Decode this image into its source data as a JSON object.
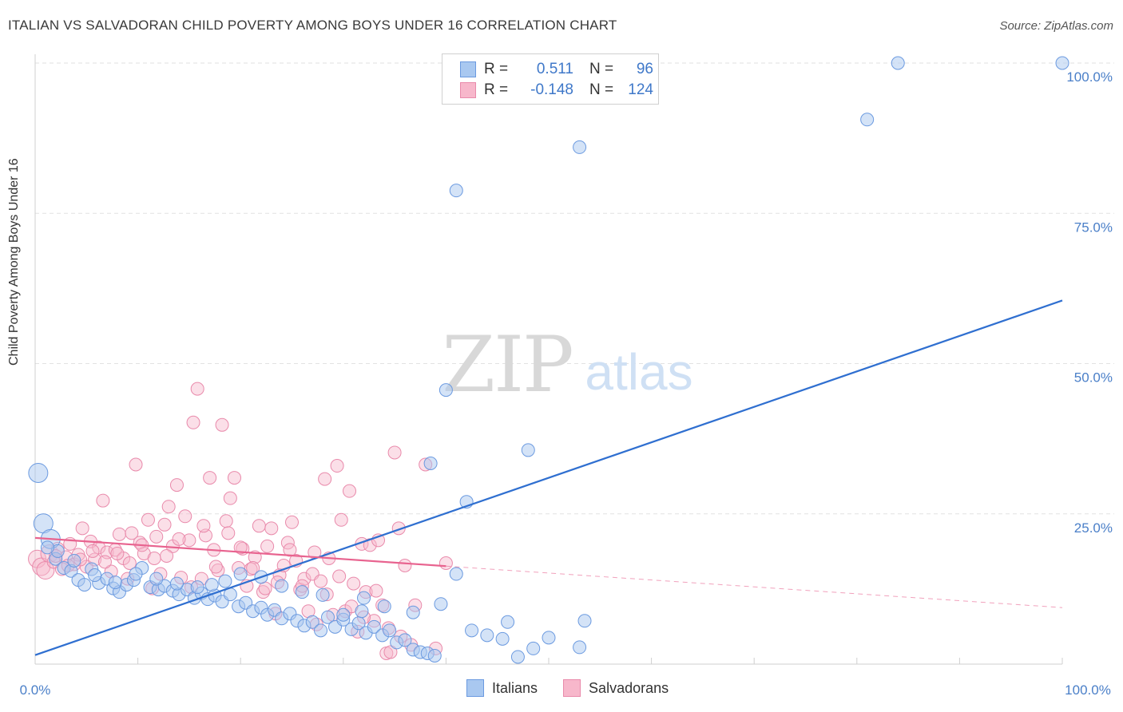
{
  "title": "ITALIAN VS SALVADORAN CHILD POVERTY AMONG BOYS UNDER 16 CORRELATION CHART",
  "source": "Source: ZipAtlas.com",
  "watermark": {
    "zip": "ZIP",
    "atlas": "atlas"
  },
  "legend": {
    "rows": [
      {
        "r_label": "R =",
        "r_value": "0.511",
        "n_label": "N =",
        "n_value": "96"
      },
      {
        "r_label": "R =",
        "r_value": "-0.148",
        "n_label": "N =",
        "n_value": "124"
      }
    ]
  },
  "bottom_legend": {
    "italians": "Italians",
    "salvadorans": "Salvadorans"
  },
  "colors": {
    "italians_fill": "#a9c8f0",
    "italians_stroke": "#6b9ae0",
    "italians_line": "#2f6fd0",
    "salvadorans_fill": "#f7b7cb",
    "salvadorans_stroke": "#e98aab",
    "salvadorans_line": "#e8638f"
  },
  "chart_data": {
    "type": "scatter",
    "title": "ITALIAN VS SALVADORAN CHILD POVERTY AMONG BOYS UNDER 16 CORRELATION CHART",
    "xlabel": "",
    "ylabel": "Child Poverty Among Boys Under 16",
    "xlim": [
      0,
      100
    ],
    "ylim": [
      0,
      100
    ],
    "x_tick_labels": [
      "0.0%",
      "100.0%"
    ],
    "y_ticks": [
      {
        "value": 25,
        "label": "25.0%"
      },
      {
        "value": 50,
        "label": "50.0%"
      },
      {
        "value": 75,
        "label": "75.0%"
      },
      {
        "value": 100,
        "label": "100.0%"
      }
    ],
    "grid": true,
    "series": [
      {
        "name": "Italians",
        "r": 0.511,
        "n": 96,
        "trend": {
          "x": [
            0,
            100
          ],
          "y": [
            1.5,
            60.5
          ]
        },
        "points": [
          [
            0.3,
            31.8
          ],
          [
            0.8,
            23.4
          ],
          [
            1.5,
            20.8
          ],
          [
            2.0,
            17.5
          ],
          [
            2.8,
            16.0
          ],
          [
            3.5,
            15.5
          ],
          [
            4.2,
            14.0
          ],
          [
            4.8,
            13.2
          ],
          [
            5.5,
            15.8
          ],
          [
            6.2,
            13.5
          ],
          [
            7.0,
            14.2
          ],
          [
            7.6,
            12.6
          ],
          [
            8.2,
            12.0
          ],
          [
            8.9,
            13.2
          ],
          [
            9.6,
            14.0
          ],
          [
            10.4,
            16.0
          ],
          [
            11.2,
            12.8
          ],
          [
            12.0,
            12.4
          ],
          [
            12.6,
            13.0
          ],
          [
            13.4,
            12.2
          ],
          [
            14.0,
            11.6
          ],
          [
            14.8,
            12.4
          ],
          [
            15.5,
            11.0
          ],
          [
            16.2,
            11.8
          ],
          [
            16.8,
            10.8
          ],
          [
            17.5,
            11.4
          ],
          [
            18.2,
            10.4
          ],
          [
            19.0,
            11.6
          ],
          [
            19.8,
            9.6
          ],
          [
            20.5,
            10.2
          ],
          [
            21.2,
            8.8
          ],
          [
            22.0,
            9.4
          ],
          [
            22.6,
            8.2
          ],
          [
            23.3,
            9.0
          ],
          [
            24.0,
            7.6
          ],
          [
            24.8,
            8.4
          ],
          [
            25.5,
            7.2
          ],
          [
            26.2,
            6.4
          ],
          [
            27.0,
            7.0
          ],
          [
            27.8,
            5.6
          ],
          [
            28.5,
            7.8
          ],
          [
            29.2,
            6.2
          ],
          [
            30.0,
            7.4
          ],
          [
            30.8,
            5.8
          ],
          [
            31.5,
            6.8
          ],
          [
            32.2,
            5.2
          ],
          [
            33.0,
            6.2
          ],
          [
            33.8,
            4.8
          ],
          [
            34.5,
            5.6
          ],
          [
            35.2,
            3.6
          ],
          [
            36.0,
            4.0
          ],
          [
            36.8,
            2.4
          ],
          [
            37.5,
            2.0
          ],
          [
            38.2,
            1.8
          ],
          [
            38.9,
            1.4
          ],
          [
            41.0,
            15.0
          ],
          [
            42.0,
            27.0
          ],
          [
            48.0,
            35.6
          ],
          [
            40.0,
            45.6
          ],
          [
            41.0,
            78.8
          ],
          [
            53.0,
            86.0
          ],
          [
            81.0,
            90.6
          ],
          [
            84.0,
            100.0
          ],
          [
            100.0,
            100.0
          ],
          [
            38.5,
            33.4
          ],
          [
            30.0,
            8.2
          ],
          [
            31.8,
            8.8
          ],
          [
            34.0,
            9.6
          ],
          [
            36.8,
            8.6
          ],
          [
            39.5,
            10.0
          ],
          [
            32.0,
            11.0
          ],
          [
            28.0,
            11.5
          ],
          [
            26.0,
            12.0
          ],
          [
            24.0,
            13.0
          ],
          [
            22.0,
            14.5
          ],
          [
            20.0,
            15.0
          ],
          [
            18.5,
            13.8
          ],
          [
            17.2,
            13.2
          ],
          [
            15.8,
            12.8
          ],
          [
            13.8,
            13.4
          ],
          [
            11.8,
            14.2
          ],
          [
            9.8,
            15.0
          ],
          [
            7.8,
            13.6
          ],
          [
            5.8,
            14.8
          ],
          [
            3.8,
            17.2
          ],
          [
            2.2,
            18.8
          ],
          [
            1.2,
            19.4
          ],
          [
            44.0,
            4.8
          ],
          [
            45.5,
            4.2
          ],
          [
            47.0,
            1.2
          ],
          [
            50.0,
            4.4
          ],
          [
            53.5,
            7.2
          ],
          [
            53.0,
            2.8
          ],
          [
            42.5,
            5.6
          ],
          [
            46.0,
            7.0
          ],
          [
            48.5,
            2.6
          ]
        ]
      },
      {
        "name": "Salvadorans",
        "r": -0.148,
        "n": 124,
        "trend": {
          "x": [
            0,
            40
          ],
          "y": [
            21.0,
            16.3
          ]
        },
        "trend_dashed": {
          "x": [
            40,
            100
          ],
          "y": [
            16.3,
            9.4
          ]
        },
        "points": [
          [
            0.2,
            17.5
          ],
          [
            0.6,
            16.2
          ],
          [
            1.0,
            15.6
          ],
          [
            1.4,
            18.4
          ],
          [
            1.8,
            17.0
          ],
          [
            2.2,
            19.2
          ],
          [
            2.6,
            15.8
          ],
          [
            3.0,
            17.8
          ],
          [
            3.4,
            20.0
          ],
          [
            3.8,
            16.6
          ],
          [
            4.2,
            18.2
          ],
          [
            4.6,
            22.6
          ],
          [
            5.0,
            16.2
          ],
          [
            5.4,
            20.4
          ],
          [
            5.8,
            17.4
          ],
          [
            6.2,
            19.4
          ],
          [
            6.6,
            27.2
          ],
          [
            7.0,
            18.6
          ],
          [
            7.4,
            15.4
          ],
          [
            7.8,
            19.0
          ],
          [
            8.2,
            21.6
          ],
          [
            8.6,
            17.6
          ],
          [
            9.0,
            14.2
          ],
          [
            9.4,
            21.8
          ],
          [
            9.8,
            33.2
          ],
          [
            10.2,
            20.2
          ],
          [
            10.6,
            18.4
          ],
          [
            11.0,
            24.0
          ],
          [
            11.4,
            12.6
          ],
          [
            11.8,
            21.2
          ],
          [
            12.2,
            15.0
          ],
          [
            12.6,
            23.2
          ],
          [
            13.0,
            26.2
          ],
          [
            13.4,
            19.6
          ],
          [
            13.8,
            29.8
          ],
          [
            14.2,
            14.4
          ],
          [
            14.6,
            24.6
          ],
          [
            15.0,
            20.6
          ],
          [
            15.4,
            40.2
          ],
          [
            15.8,
            45.8
          ],
          [
            16.2,
            14.2
          ],
          [
            16.6,
            21.4
          ],
          [
            17.0,
            31.0
          ],
          [
            17.4,
            19.0
          ],
          [
            17.8,
            15.6
          ],
          [
            18.2,
            39.8
          ],
          [
            18.6,
            23.8
          ],
          [
            19.0,
            27.6
          ],
          [
            19.4,
            31.0
          ],
          [
            19.8,
            16.0
          ],
          [
            20.2,
            19.2
          ],
          [
            20.6,
            13.0
          ],
          [
            21.0,
            15.8
          ],
          [
            21.4,
            17.8
          ],
          [
            21.8,
            23.0
          ],
          [
            22.2,
            12.0
          ],
          [
            22.6,
            19.6
          ],
          [
            23.0,
            22.6
          ],
          [
            23.4,
            8.4
          ],
          [
            23.8,
            14.8
          ],
          [
            24.2,
            16.4
          ],
          [
            24.6,
            20.2
          ],
          [
            25.0,
            23.6
          ],
          [
            25.4,
            17.2
          ],
          [
            25.8,
            12.4
          ],
          [
            26.2,
            14.2
          ],
          [
            26.6,
            8.8
          ],
          [
            27.0,
            15.0
          ],
          [
            27.4,
            6.6
          ],
          [
            27.8,
            13.8
          ],
          [
            28.2,
            30.8
          ],
          [
            28.6,
            17.6
          ],
          [
            29.0,
            8.2
          ],
          [
            29.4,
            33.0
          ],
          [
            29.8,
            24.0
          ],
          [
            30.2,
            8.8
          ],
          [
            30.6,
            28.8
          ],
          [
            31.0,
            13.4
          ],
          [
            31.4,
            5.4
          ],
          [
            31.8,
            20.0
          ],
          [
            32.2,
            12.0
          ],
          [
            32.6,
            19.8
          ],
          [
            33.0,
            7.2
          ],
          [
            33.4,
            20.6
          ],
          [
            33.8,
            9.8
          ],
          [
            34.2,
            1.8
          ],
          [
            34.6,
            2.0
          ],
          [
            35.0,
            35.2
          ],
          [
            35.4,
            22.6
          ],
          [
            36.0,
            16.4
          ],
          [
            37.0,
            9.8
          ],
          [
            38.0,
            33.2
          ],
          [
            39.0,
            2.6
          ],
          [
            40.0,
            16.8
          ],
          [
            2.0,
            18.0
          ],
          [
            3.2,
            16.4
          ],
          [
            4.4,
            17.4
          ],
          [
            5.6,
            18.8
          ],
          [
            6.8,
            17.0
          ],
          [
            8.0,
            18.4
          ],
          [
            9.2,
            16.8
          ],
          [
            10.4,
            19.8
          ],
          [
            11.6,
            17.6
          ],
          [
            12.8,
            18.0
          ],
          [
            14.0,
            20.8
          ],
          [
            15.2,
            12.8
          ],
          [
            16.4,
            23.0
          ],
          [
            17.6,
            16.2
          ],
          [
            18.8,
            21.8
          ],
          [
            20.0,
            19.4
          ],
          [
            21.2,
            16.0
          ],
          [
            22.4,
            12.6
          ],
          [
            23.6,
            13.6
          ],
          [
            24.8,
            19.0
          ],
          [
            26.0,
            13.0
          ],
          [
            27.2,
            18.6
          ],
          [
            28.4,
            11.6
          ],
          [
            29.6,
            14.6
          ],
          [
            30.8,
            9.6
          ],
          [
            32.0,
            7.8
          ],
          [
            33.2,
            12.2
          ],
          [
            34.4,
            6.0
          ],
          [
            35.6,
            4.6
          ],
          [
            36.6,
            3.2
          ]
        ]
      }
    ]
  }
}
